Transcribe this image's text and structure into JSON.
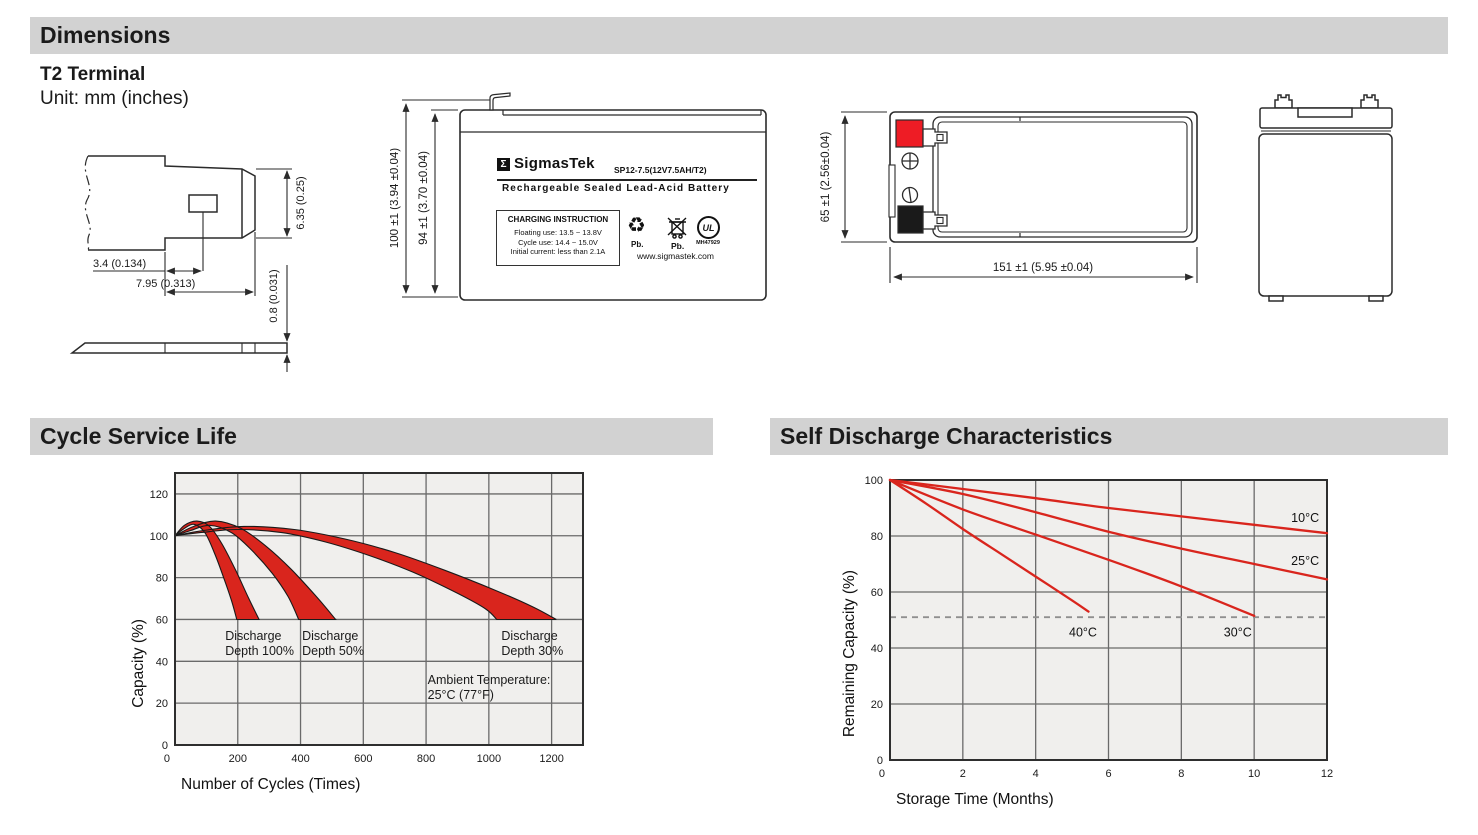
{
  "page": {
    "dimensions_title": "Dimensions",
    "terminal_type": "T2 Terminal",
    "unit_note": "Unit: mm (inches)"
  },
  "terminal_drawing": {
    "dim_terminal_height": "6.35 (0.25)",
    "dim_hole_offset": "3.4 (0.134)",
    "dim_terminal_width": "7.95 (0.313)",
    "dim_thickness": "0.8 (0.031)"
  },
  "front_view": {
    "dim_total_height": "100 ±1 (3.94 ±0.04)",
    "dim_body_height": "94 ±1 (3.70 ±0.04)",
    "label": {
      "sigma": "Σ",
      "brand": "SigmasTek",
      "model": "SP12-7.5(12V7.5AH/T2)",
      "subtitle": "Rechargeable Sealed Lead-Acid Battery",
      "charging_title": "CHARGING INSTRUCTION",
      "charging_lines": [
        "Floating use: 13.5 ~ 13.8V",
        "Cycle use: 14.4 ~ 15.0V",
        "Initial current: less than 2.1A"
      ],
      "pb_recycle": "Pb.",
      "pb_trash": "Pb.",
      "ul_text": "UL",
      "ul_code": "MH47929",
      "website": "www.sigmastek.com"
    }
  },
  "top_view": {
    "dim_height": "65 ±1 (2.56±0.04)",
    "dim_width": "151 ±1 (5.95 ±0.04)"
  },
  "sections": {
    "cycle_title": "Cycle Service Life",
    "self_discharge_title": "Self Discharge Characteristics"
  },
  "colors": {
    "accent_red": "#d9251d",
    "terminal_red": "#ee1c25",
    "terminal_black": "#1a1a1a",
    "section_bar_gray": "#d2d2d2",
    "plot_bg": "#f0efed",
    "grid": "#6a6a6a",
    "dashed_gray": "#8f8f8f"
  },
  "chart_data": [
    {
      "type": "area",
      "title": "Cycle Service Life",
      "xlabel": "Number of Cycles (Times)",
      "ylabel": "Capacity (%)",
      "xlim": [
        0,
        1300
      ],
      "ylim": [
        0,
        130
      ],
      "xticks": [
        0,
        200,
        400,
        600,
        800,
        1000,
        1200
      ],
      "yticks": [
        0,
        20,
        40,
        60,
        80,
        100,
        120
      ],
      "grid": true,
      "legend_position": "none",
      "band_floor_y": 60,
      "bands": [
        {
          "name": "Discharge Depth 30%",
          "upper": [
            [
              0,
              100
            ],
            [
              90,
              102.5
            ],
            [
              220,
              104.5
            ],
            [
              380,
              103
            ],
            [
              540,
              98.5
            ],
            [
              700,
              92
            ],
            [
              860,
              83.5
            ],
            [
              1020,
              74
            ],
            [
              1140,
              66
            ],
            [
              1215,
              60
            ]
          ],
          "lower": [
            [
              0,
              100
            ],
            [
              80,
              101.5
            ],
            [
              200,
              103
            ],
            [
              340,
              101.5
            ],
            [
              480,
              97
            ],
            [
              620,
              90.5
            ],
            [
              760,
              82.5
            ],
            [
              900,
              72.5
            ],
            [
              990,
              65
            ],
            [
              1025,
              60
            ]
          ]
        },
        {
          "name": "Discharge Depth 50%",
          "upper": [
            [
              0,
              100
            ],
            [
              60,
              104.5
            ],
            [
              130,
              107
            ],
            [
              210,
              103.5
            ],
            [
              290,
              95
            ],
            [
              370,
              84
            ],
            [
              450,
              71
            ],
            [
              512,
              60
            ]
          ],
          "lower": [
            [
              0,
              100
            ],
            [
              50,
              102.5
            ],
            [
              110,
              105
            ],
            [
              180,
              101.5
            ],
            [
              245,
              93
            ],
            [
              310,
              82
            ],
            [
              360,
              71
            ],
            [
              394,
              60
            ]
          ]
        },
        {
          "name": "Discharge Depth 100%",
          "upper": [
            [
              0,
              100
            ],
            [
              30,
              105
            ],
            [
              70,
              107
            ],
            [
              110,
              104.5
            ],
            [
              150,
              96
            ],
            [
              195,
              83
            ],
            [
              235,
              70
            ],
            [
              268,
              60
            ]
          ],
          "lower": [
            [
              0,
              100
            ],
            [
              25,
              103
            ],
            [
              60,
              105.5
            ],
            [
              95,
              101.5
            ],
            [
              125,
              92
            ],
            [
              155,
              80
            ],
            [
              180,
              69
            ],
            [
              197,
              60
            ]
          ]
        }
      ],
      "annotations": [
        {
          "lines": [
            "Discharge",
            "Depth 100%"
          ],
          "x": 160,
          "y": 52
        },
        {
          "lines": [
            "Discharge",
            "Depth 50%"
          ],
          "x": 405,
          "y": 52
        },
        {
          "lines": [
            "Discharge",
            "Depth 30%"
          ],
          "x": 1040,
          "y": 52
        },
        {
          "lines": [
            "Ambient Temperature:",
            "25°C (77°F)"
          ],
          "x": 805,
          "y": 31
        }
      ]
    },
    {
      "type": "line",
      "title": "Self Discharge Characteristics",
      "xlabel": "Storage Time (Months)",
      "ylabel": "Remaining Capacity (%)",
      "xlim": [
        0,
        12
      ],
      "ylim": [
        0,
        100
      ],
      "xticks": [
        0,
        2,
        4,
        6,
        8,
        10,
        12
      ],
      "yticks": [
        0,
        20,
        40,
        60,
        80,
        100
      ],
      "grid": true,
      "dashed_line_y": 51,
      "series": [
        {
          "name": "10°C",
          "points": [
            [
              0,
              100
            ],
            [
              2,
              96.8
            ],
            [
              4,
              93.5
            ],
            [
              6,
              90
            ],
            [
              8,
              87
            ],
            [
              10,
              84
            ],
            [
              12,
              81
            ]
          ],
          "label_x": 11.4,
          "label_y": 86.5
        },
        {
          "name": "25°C",
          "points": [
            [
              0,
              100
            ],
            [
              2,
              95
            ],
            [
              4,
              88.5
            ],
            [
              6,
              81.5
            ],
            [
              8,
              75.5
            ],
            [
              10,
              70
            ],
            [
              12,
              64.5
            ]
          ],
          "label_x": 11.4,
          "label_y": 71
        },
        {
          "name": "30°C",
          "points": [
            [
              0,
              100
            ],
            [
              2,
              89.5
            ],
            [
              4,
              80.5
            ],
            [
              6,
              71.5
            ],
            [
              8,
              62
            ],
            [
              10,
              51.5
            ]
          ],
          "label_x": 9.55,
          "label_y": 45.5
        },
        {
          "name": "40°C",
          "points": [
            [
              0,
              100
            ],
            [
              1,
              91.5
            ],
            [
              2,
              82.5
            ],
            [
              3,
              74
            ],
            [
              4,
              65.5
            ],
            [
              5,
              57
            ],
            [
              5.45,
              53
            ]
          ],
          "label_x": 5.3,
          "label_y": 45.5
        }
      ]
    }
  ]
}
